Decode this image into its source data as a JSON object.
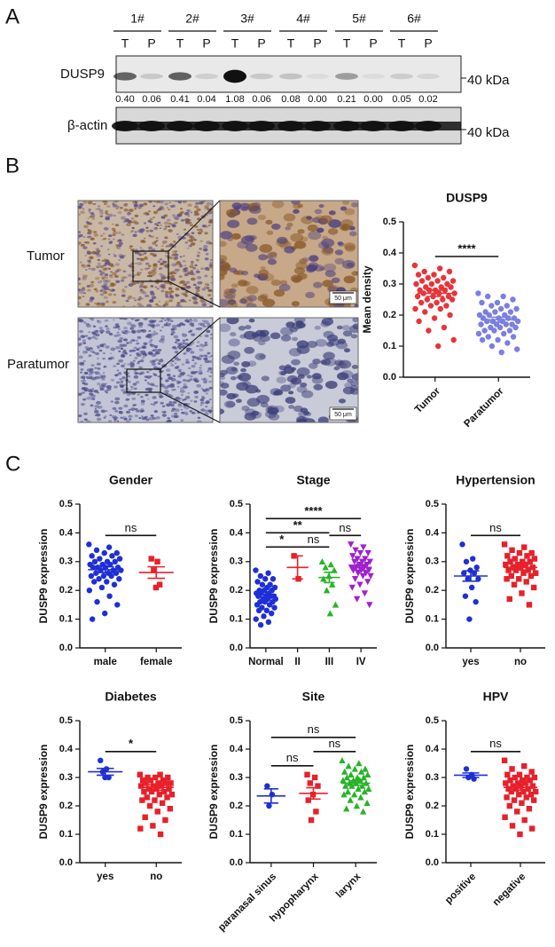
{
  "panels": {
    "a": "A",
    "b": "B",
    "c": "C"
  },
  "blot": {
    "samples": [
      "1#",
      "2#",
      "3#",
      "4#",
      "5#",
      "6#"
    ],
    "lanes": [
      "T",
      "P"
    ],
    "target": {
      "label": "DUSP9",
      "marker": "40 kDa",
      "band_labels": [
        "0.40",
        "0.06",
        "0.41",
        "0.04",
        "1.08",
        "0.06",
        "0.08",
        "0.00",
        "0.21",
        "0.00",
        "0.05",
        "0.02"
      ]
    },
    "control": {
      "label": "β-actin",
      "marker": "40 kDa"
    }
  },
  "ihc": {
    "rows": [
      "Tumor",
      "Paratumor"
    ],
    "scale_bar": "50 μm"
  },
  "chart_data": [
    {
      "type": "dot",
      "title": "DUSP9",
      "ylabel": "Mean density",
      "categories": [
        "Tumor",
        "Paratumor"
      ],
      "ylim": [
        0,
        0.5
      ],
      "yticks": [
        {
          "value": 0,
          "label": "0.0"
        },
        0.1,
        0.2,
        0.3,
        0.4,
        0.5
      ],
      "groups": [
        {
          "color": "#e8343a",
          "marker": "circle",
          "mean": 0.27,
          "sem": 0.01,
          "points": [
            0.36,
            0.35,
            0.34,
            0.34,
            0.33,
            0.33,
            0.32,
            0.32,
            0.31,
            0.31,
            0.31,
            0.3,
            0.3,
            0.3,
            0.29,
            0.29,
            0.29,
            0.28,
            0.28,
            0.28,
            0.28,
            0.27,
            0.27,
            0.27,
            0.26,
            0.26,
            0.26,
            0.25,
            0.25,
            0.25,
            0.24,
            0.24,
            0.23,
            0.23,
            0.22,
            0.22,
            0.21,
            0.2,
            0.19,
            0.18,
            0.16,
            0.15,
            0.12,
            0.1
          ]
        },
        {
          "color": "#7b7fe0",
          "marker": "circle",
          "mean": 0.185,
          "sem": 0.008,
          "points": [
            0.27,
            0.26,
            0.26,
            0.25,
            0.24,
            0.24,
            0.23,
            0.23,
            0.22,
            0.22,
            0.21,
            0.21,
            0.21,
            0.2,
            0.2,
            0.2,
            0.19,
            0.19,
            0.19,
            0.19,
            0.18,
            0.18,
            0.18,
            0.18,
            0.17,
            0.17,
            0.17,
            0.17,
            0.16,
            0.16,
            0.16,
            0.15,
            0.15,
            0.15,
            0.14,
            0.14,
            0.13,
            0.13,
            0.12,
            0.12,
            0.11,
            0.1,
            0.09,
            0.08
          ]
        }
      ],
      "comparisons": [
        {
          "from": 0,
          "to": 1,
          "label": "****"
        }
      ]
    },
    {
      "type": "dot",
      "title": "Gender",
      "ylabel": "DUSP9 expression",
      "categories": [
        "male",
        "female"
      ],
      "ylim": [
        0,
        0.5
      ],
      "yticks": [
        {
          "value": 0,
          "label": "0.0"
        },
        0.1,
        0.2,
        0.3,
        0.4,
        0.5
      ],
      "groups": [
        {
          "color": "#1f2fd6",
          "marker": "circle",
          "mean": 0.272,
          "sem": 0.01,
          "points": [
            0.36,
            0.35,
            0.34,
            0.33,
            0.33,
            0.32,
            0.32,
            0.31,
            0.31,
            0.3,
            0.3,
            0.3,
            0.29,
            0.29,
            0.29,
            0.28,
            0.28,
            0.28,
            0.28,
            0.27,
            0.27,
            0.27,
            0.26,
            0.26,
            0.26,
            0.25,
            0.25,
            0.25,
            0.24,
            0.24,
            0.23,
            0.23,
            0.22,
            0.21,
            0.2,
            0.18,
            0.16,
            0.15,
            0.12,
            0.1
          ]
        },
        {
          "color": "#e8202a",
          "marker": "square",
          "mean": 0.262,
          "sem": 0.02,
          "points": [
            0.31,
            0.3,
            0.27,
            0.22,
            0.21
          ]
        }
      ],
      "comparisons": [
        {
          "from": 0,
          "to": 1,
          "label": "ns"
        }
      ]
    },
    {
      "type": "dot",
      "title": "Stage",
      "ylabel": "DUSP9 expression",
      "categories": [
        "Normal",
        "II",
        "III",
        "IV"
      ],
      "ylim": [
        0,
        0.5
      ],
      "yticks": [
        {
          "value": 0,
          "label": "0.0"
        },
        0.1,
        0.2,
        0.3,
        0.4,
        0.5
      ],
      "groups": [
        {
          "color": "#1f2fd6",
          "marker": "circle",
          "mean": 0.185,
          "sem": 0.008,
          "points": [
            0.27,
            0.26,
            0.25,
            0.24,
            0.24,
            0.23,
            0.22,
            0.22,
            0.21,
            0.21,
            0.2,
            0.2,
            0.2,
            0.19,
            0.19,
            0.19,
            0.18,
            0.18,
            0.18,
            0.18,
            0.17,
            0.17,
            0.17,
            0.16,
            0.16,
            0.16,
            0.15,
            0.15,
            0.14,
            0.14,
            0.13,
            0.13,
            0.12,
            0.11,
            0.1,
            0.09,
            0.08
          ]
        },
        {
          "color": "#e8202a",
          "marker": "square",
          "mean": 0.28,
          "sem": 0.04,
          "points": [
            0.32,
            0.24
          ]
        },
        {
          "color": "#27b327",
          "marker": "triangle",
          "mean": 0.245,
          "sem": 0.018,
          "points": [
            0.3,
            0.29,
            0.28,
            0.27,
            0.25,
            0.24,
            0.22,
            0.2,
            0.15,
            0.12
          ]
        },
        {
          "color": "#a020d0",
          "marker": "triangle-down",
          "mean": 0.28,
          "sem": 0.01,
          "points": [
            0.36,
            0.35,
            0.34,
            0.33,
            0.33,
            0.32,
            0.31,
            0.31,
            0.3,
            0.3,
            0.3,
            0.29,
            0.29,
            0.28,
            0.28,
            0.28,
            0.27,
            0.27,
            0.27,
            0.26,
            0.26,
            0.25,
            0.25,
            0.24,
            0.23,
            0.22,
            0.21,
            0.19,
            0.17,
            0.15
          ]
        }
      ],
      "comparisons": [
        {
          "from": 0,
          "to": 1,
          "label": "*"
        },
        {
          "from": 1,
          "to": 2,
          "label": "ns"
        },
        {
          "from": 0,
          "to": 2,
          "label": "**"
        },
        {
          "from": 2,
          "to": 3,
          "label": "ns"
        },
        {
          "from": 0,
          "to": 3,
          "label": "****"
        }
      ]
    },
    {
      "type": "dot",
      "title": "Hypertension",
      "ylabel": "DUSP9 expression",
      "categories": [
        "yes",
        "no"
      ],
      "ylim": [
        0,
        0.5
      ],
      "yticks": [
        {
          "value": 0,
          "label": "0.0"
        },
        0.1,
        0.2,
        0.3,
        0.4,
        0.5
      ],
      "groups": [
        {
          "color": "#1f2fd6",
          "marker": "circle",
          "mean": 0.25,
          "sem": 0.018,
          "points": [
            0.36,
            0.31,
            0.3,
            0.28,
            0.27,
            0.26,
            0.26,
            0.24,
            0.24,
            0.21,
            0.18,
            0.16,
            0.1
          ]
        },
        {
          "color": "#e8202a",
          "marker": "square",
          "mean": 0.28,
          "sem": 0.009,
          "points": [
            0.36,
            0.35,
            0.34,
            0.33,
            0.33,
            0.32,
            0.32,
            0.31,
            0.31,
            0.3,
            0.3,
            0.3,
            0.29,
            0.29,
            0.29,
            0.28,
            0.28,
            0.28,
            0.27,
            0.27,
            0.27,
            0.26,
            0.26,
            0.25,
            0.25,
            0.24,
            0.24,
            0.23,
            0.22,
            0.21,
            0.19,
            0.17,
            0.15
          ]
        }
      ],
      "comparisons": [
        {
          "from": 0,
          "to": 1,
          "label": "ns"
        }
      ]
    },
    {
      "type": "dot",
      "title": "Diabetes",
      "ylabel": "DUSP9 expression",
      "categories": [
        "yes",
        "no"
      ],
      "ylim": [
        0,
        0.5
      ],
      "yticks": [
        {
          "value": 0,
          "label": "0.0"
        },
        0.1,
        0.2,
        0.3,
        0.4,
        0.5
      ],
      "groups": [
        {
          "color": "#1f2fd6",
          "marker": "circle",
          "mean": 0.32,
          "sem": 0.012,
          "points": [
            0.36,
            0.33,
            0.32,
            0.3,
            0.3
          ]
        },
        {
          "color": "#e8202a",
          "marker": "square",
          "mean": 0.265,
          "sem": 0.01,
          "points": [
            0.31,
            0.31,
            0.3,
            0.3,
            0.3,
            0.29,
            0.29,
            0.29,
            0.28,
            0.28,
            0.28,
            0.28,
            0.27,
            0.27,
            0.27,
            0.26,
            0.26,
            0.26,
            0.25,
            0.25,
            0.25,
            0.24,
            0.24,
            0.23,
            0.23,
            0.22,
            0.22,
            0.21,
            0.2,
            0.19,
            0.18,
            0.16,
            0.15,
            0.13,
            0.12,
            0.1
          ]
        }
      ],
      "comparisons": [
        {
          "from": 0,
          "to": 1,
          "label": "*"
        }
      ]
    },
    {
      "type": "dot",
      "title": "Site",
      "ylabel": "DUSP9 expression",
      "categories": [
        "paranasal sinus",
        "hypopharynx",
        "larynx"
      ],
      "ylim": [
        0,
        0.5
      ],
      "yticks": [
        {
          "value": 0,
          "label": "0.0"
        },
        0.1,
        0.2,
        0.3,
        0.4,
        0.5
      ],
      "groups": [
        {
          "color": "#1f2fd6",
          "marker": "circle",
          "mean": 0.235,
          "sem": 0.025,
          "points": [
            0.27,
            0.24,
            0.2
          ]
        },
        {
          "color": "#e8202a",
          "marker": "square",
          "mean": 0.244,
          "sem": 0.02,
          "points": [
            0.31,
            0.3,
            0.28,
            0.27,
            0.24,
            0.22,
            0.18,
            0.15
          ]
        },
        {
          "color": "#27b327",
          "marker": "triangle",
          "mean": 0.28,
          "sem": 0.008,
          "points": [
            0.36,
            0.35,
            0.34,
            0.33,
            0.33,
            0.32,
            0.32,
            0.31,
            0.31,
            0.3,
            0.3,
            0.3,
            0.29,
            0.29,
            0.29,
            0.28,
            0.28,
            0.28,
            0.27,
            0.27,
            0.27,
            0.26,
            0.26,
            0.25,
            0.25,
            0.24,
            0.24,
            0.23,
            0.22,
            0.21,
            0.2,
            0.19,
            0.18
          ]
        }
      ],
      "comparisons": [
        {
          "from": 0,
          "to": 1,
          "label": "ns"
        },
        {
          "from": 1,
          "to": 2,
          "label": "ns"
        },
        {
          "from": 0,
          "to": 2,
          "label": "ns"
        }
      ]
    },
    {
      "type": "dot",
      "title": "HPV",
      "ylabel": "DUSP9 expression",
      "categories": [
        "positive",
        "negative"
      ],
      "ylim": [
        0,
        0.5
      ],
      "yticks": [
        {
          "value": 0,
          "label": "0.0"
        },
        0.1,
        0.2,
        0.3,
        0.4,
        0.5
      ],
      "groups": [
        {
          "color": "#1f2fd6",
          "marker": "circle",
          "mean": 0.308,
          "sem": 0.008,
          "points": [
            0.33,
            0.31,
            0.3,
            0.295
          ]
        },
        {
          "color": "#e8202a",
          "marker": "square",
          "mean": 0.265,
          "sem": 0.01,
          "points": [
            0.36,
            0.34,
            0.33,
            0.32,
            0.31,
            0.31,
            0.3,
            0.3,
            0.3,
            0.29,
            0.29,
            0.29,
            0.28,
            0.28,
            0.28,
            0.27,
            0.27,
            0.27,
            0.26,
            0.26,
            0.26,
            0.25,
            0.25,
            0.25,
            0.24,
            0.24,
            0.23,
            0.23,
            0.22,
            0.22,
            0.21,
            0.2,
            0.19,
            0.18,
            0.16,
            0.15,
            0.13,
            0.12,
            0.1
          ]
        }
      ],
      "comparisons": [
        {
          "from": 0,
          "to": 1,
          "label": "ns"
        }
      ]
    }
  ]
}
